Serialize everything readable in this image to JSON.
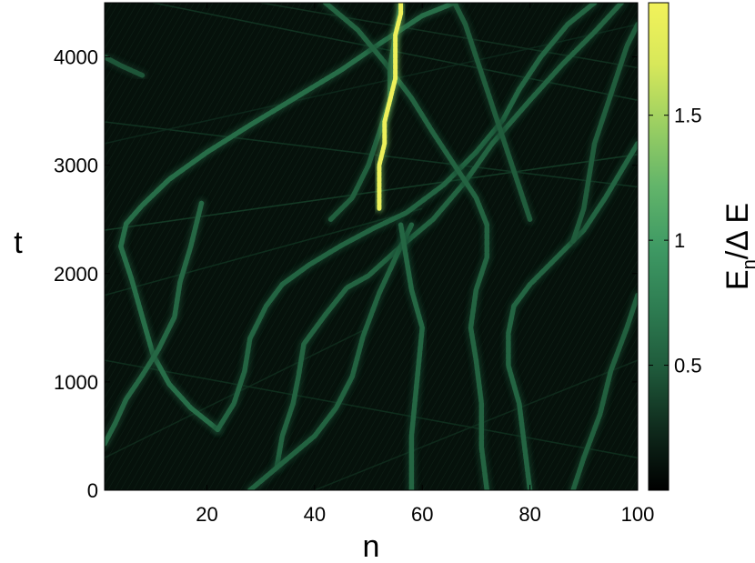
{
  "chart_data": {
    "type": "heatmap",
    "title": "",
    "xlabel": "n",
    "ylabel": "t",
    "xlim": [
      1,
      100
    ],
    "ylim": [
      0,
      4500
    ],
    "x_ticks": [
      20,
      40,
      60,
      80,
      100
    ],
    "y_ticks": [
      0,
      1000,
      2000,
      3000,
      4000
    ],
    "colorbar": {
      "label_main": "E",
      "label_sub": "n",
      "label_rest": "/Δ E",
      "range": [
        0,
        1.95
      ],
      "ticks": [
        0.5,
        1,
        1.5
      ],
      "colors": [
        "#000000",
        "#0f2a1c",
        "#1f5a3b",
        "#2e7d52",
        "#3f9a64",
        "#63b56a",
        "#9bcf62",
        "#d8e85a",
        "#f2f25a"
      ]
    },
    "background_color": "#06110b",
    "tracks": [
      {
        "id": "A",
        "amp": 0.62,
        "points": [
          [
            22,
            560
          ],
          [
            17,
            760
          ],
          [
            13,
            980
          ],
          [
            10,
            1250
          ],
          [
            8,
            1600
          ],
          [
            6,
            1950
          ],
          [
            4,
            2250
          ],
          [
            5,
            2460
          ],
          [
            8,
            2630
          ],
          [
            13,
            2870
          ],
          [
            20,
            3120
          ],
          [
            28,
            3370
          ],
          [
            37,
            3640
          ],
          [
            45,
            3880
          ],
          [
            52,
            4120
          ],
          [
            60,
            4380
          ],
          [
            66,
            4500
          ]
        ]
      },
      {
        "id": "B",
        "amp": 0.58,
        "points": [
          [
            1,
            430
          ],
          [
            3,
            620
          ],
          [
            5,
            840
          ],
          [
            8,
            1060
          ],
          [
            11,
            1300
          ],
          [
            14,
            1600
          ],
          [
            15,
            1920
          ],
          [
            17,
            2250
          ],
          [
            19,
            2650
          ]
        ]
      },
      {
        "id": "C",
        "amp": 0.56,
        "points": [
          [
            22,
            560
          ],
          [
            25,
            800
          ],
          [
            27,
            1100
          ],
          [
            28,
            1400
          ],
          [
            31,
            1700
          ],
          [
            34,
            1900
          ],
          [
            39,
            2080
          ],
          [
            45,
            2260
          ],
          [
            51,
            2420
          ],
          [
            57,
            2560
          ],
          [
            64,
            2820
          ],
          [
            70,
            3120
          ],
          [
            75,
            3420
          ],
          [
            78,
            3700
          ],
          [
            82,
            4000
          ],
          [
            87,
            4300
          ],
          [
            92,
            4500
          ]
        ]
      },
      {
        "id": "D",
        "amp": 0.55,
        "points": [
          [
            33,
            220
          ],
          [
            34,
            500
          ],
          [
            36,
            800
          ],
          [
            37,
            1050
          ],
          [
            38,
            1350
          ],
          [
            42,
            1620
          ],
          [
            46,
            1870
          ],
          [
            50,
            1980
          ],
          [
            56,
            2250
          ],
          [
            62,
            2500
          ],
          [
            68,
            2850
          ],
          [
            73,
            3200
          ],
          [
            80,
            3600
          ],
          [
            86,
            3930
          ],
          [
            92,
            4230
          ],
          [
            97,
            4500
          ]
        ]
      },
      {
        "id": "E",
        "amp": 0.54,
        "points": [
          [
            28,
            0
          ],
          [
            34,
            250
          ],
          [
            40,
            500
          ],
          [
            44,
            760
          ],
          [
            47,
            1050
          ],
          [
            49,
            1420
          ],
          [
            52,
            1820
          ],
          [
            56,
            2250
          ],
          [
            58,
            2450
          ]
        ]
      },
      {
        "id": "F",
        "amp": 0.57,
        "points": [
          [
            58,
            0
          ],
          [
            58,
            500
          ],
          [
            59,
            1000
          ],
          [
            60,
            1500
          ],
          [
            58,
            1850
          ],
          [
            57,
            2150
          ],
          [
            56,
            2450
          ]
        ]
      },
      {
        "id": "G",
        "amp": 0.55,
        "points": [
          [
            72,
            0
          ],
          [
            71,
            400
          ],
          [
            71,
            800
          ],
          [
            70,
            1200
          ],
          [
            69,
            1500
          ],
          [
            70,
            1850
          ],
          [
            72,
            2150
          ],
          [
            72,
            2450
          ],
          [
            70,
            2700
          ],
          [
            66,
            3000
          ],
          [
            62,
            3300
          ],
          [
            58,
            3620
          ],
          [
            53,
            3950
          ],
          [
            48,
            4250
          ],
          [
            42,
            4500
          ]
        ]
      },
      {
        "id": "H",
        "amp": 0.56,
        "points": [
          [
            80,
            0
          ],
          [
            79,
            400
          ],
          [
            78,
            800
          ],
          [
            76,
            1150
          ],
          [
            76,
            1450
          ],
          [
            77,
            1700
          ],
          [
            80,
            1900
          ],
          [
            85,
            2150
          ],
          [
            90,
            2400
          ],
          [
            94,
            2700
          ],
          [
            97,
            2950
          ],
          [
            100,
            3200
          ]
        ]
      },
      {
        "id": "I",
        "amp": 0.52,
        "points": [
          [
            88,
            0
          ],
          [
            90,
            300
          ],
          [
            93,
            700
          ],
          [
            95,
            1100
          ],
          [
            98,
            1500
          ],
          [
            100,
            1800
          ]
        ]
      },
      {
        "id": "J",
        "amp": 0.52,
        "points": [
          [
            43,
            2500
          ],
          [
            47,
            2700
          ],
          [
            50,
            3000
          ],
          [
            52,
            3300
          ],
          [
            54,
            3600
          ],
          [
            54,
            3900
          ],
          [
            55,
            4200
          ],
          [
            56,
            4500
          ]
        ]
      },
      {
        "id": "K",
        "amp": 0.5,
        "points": [
          [
            80,
            2500
          ],
          [
            78,
            2800
          ],
          [
            76,
            3100
          ],
          [
            74,
            3400
          ],
          [
            72,
            3700
          ],
          [
            70,
            4000
          ],
          [
            68,
            4300
          ],
          [
            66,
            4500
          ]
        ]
      },
      {
        "id": "L",
        "amp": 0.5,
        "points": [
          [
            88,
            2300
          ],
          [
            90,
            2600
          ],
          [
            91,
            2900
          ],
          [
            92,
            3200
          ],
          [
            94,
            3500
          ],
          [
            96,
            3800
          ],
          [
            98,
            4100
          ],
          [
            100,
            4300
          ]
        ]
      },
      {
        "id": "M",
        "amp": 0.46,
        "points": [
          [
            1,
            4000
          ],
          [
            4,
            3920
          ],
          [
            8,
            3830
          ]
        ]
      },
      {
        "id": "S",
        "amp": 1.9,
        "points": [
          [
            52,
            2600
          ],
          [
            52,
            2800
          ],
          [
            52,
            3000
          ],
          [
            53,
            3200
          ],
          [
            53,
            3400
          ],
          [
            54,
            3600
          ],
          [
            55,
            3800
          ],
          [
            55,
            4000
          ],
          [
            55,
            4200
          ],
          [
            56,
            4400
          ],
          [
            56,
            4500
          ]
        ]
      }
    ],
    "faint_lines": [
      {
        "amp": 0.18,
        "points": [
          [
            1,
            2400
          ],
          [
            100,
            3100
          ]
        ]
      },
      {
        "amp": 0.16,
        "points": [
          [
            1,
            3400
          ],
          [
            100,
            2800
          ]
        ]
      },
      {
        "amp": 0.16,
        "points": [
          [
            10,
            4500
          ],
          [
            100,
            3600
          ]
        ]
      },
      {
        "amp": 0.15,
        "points": [
          [
            30,
            4500
          ],
          [
            100,
            3900
          ]
        ]
      },
      {
        "amp": 0.14,
        "points": [
          [
            1,
            1800
          ],
          [
            60,
            2600
          ]
        ]
      },
      {
        "amp": 0.14,
        "points": [
          [
            1,
            1200
          ],
          [
            100,
            300
          ]
        ]
      },
      {
        "amp": 0.13,
        "points": [
          [
            1,
            300
          ],
          [
            50,
            1500
          ]
        ]
      },
      {
        "amp": 0.13,
        "points": [
          [
            40,
            0
          ],
          [
            100,
            1200
          ]
        ]
      },
      {
        "amp": 0.12,
        "points": [
          [
            1,
            3200
          ],
          [
            100,
            4300
          ]
        ]
      }
    ]
  }
}
